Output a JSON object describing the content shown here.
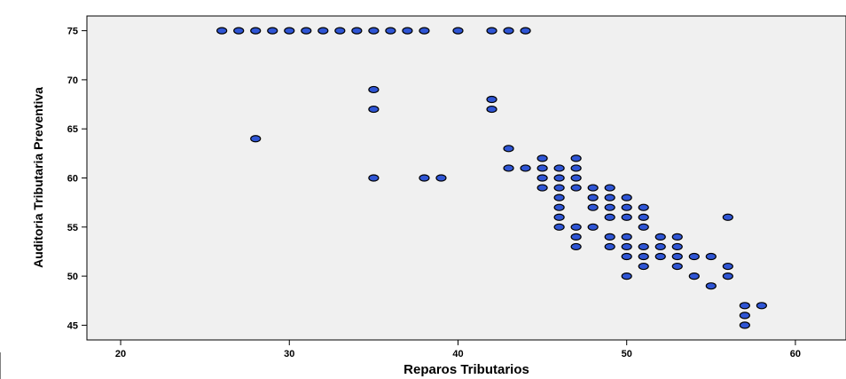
{
  "chart_data": {
    "type": "scatter",
    "xlabel": "Reparos Tributarios",
    "ylabel": "Auditoria Tributaria Preventiva",
    "xlim": [
      18,
      63
    ],
    "ylim": [
      43.5,
      76.5
    ],
    "xticks": [
      20,
      30,
      40,
      50,
      60
    ],
    "yticks": [
      45,
      50,
      55,
      60,
      65,
      70,
      75
    ],
    "grid": false,
    "colors": {
      "point_fill": "#2f55d4",
      "point_stroke": "#000000",
      "plot_background": "#f0f0f0"
    },
    "points": [
      [
        26,
        75
      ],
      [
        27,
        75
      ],
      [
        28,
        75
      ],
      [
        29,
        75
      ],
      [
        30,
        75
      ],
      [
        31,
        75
      ],
      [
        32,
        75
      ],
      [
        33,
        75
      ],
      [
        34,
        75
      ],
      [
        35,
        75
      ],
      [
        36,
        75
      ],
      [
        37,
        75
      ],
      [
        38,
        75
      ],
      [
        40,
        75
      ],
      [
        42,
        75
      ],
      [
        43,
        75
      ],
      [
        44,
        75
      ],
      [
        35,
        69
      ],
      [
        35,
        67
      ],
      [
        42,
        68
      ],
      [
        42,
        67
      ],
      [
        28,
        64
      ],
      [
        35,
        60
      ],
      [
        38,
        60
      ],
      [
        39,
        60
      ],
      [
        43,
        63
      ],
      [
        43,
        61
      ],
      [
        44,
        61
      ],
      [
        45,
        62
      ],
      [
        45,
        61
      ],
      [
        45,
        60
      ],
      [
        45,
        59
      ],
      [
        46,
        61
      ],
      [
        46,
        60
      ],
      [
        46,
        59
      ],
      [
        46,
        58
      ],
      [
        46,
        57
      ],
      [
        46,
        56
      ],
      [
        46,
        55
      ],
      [
        47,
        62
      ],
      [
        47,
        61
      ],
      [
        47,
        60
      ],
      [
        47,
        59
      ],
      [
        47,
        55
      ],
      [
        47,
        54
      ],
      [
        47,
        53
      ],
      [
        48,
        59
      ],
      [
        48,
        58
      ],
      [
        48,
        57
      ],
      [
        48,
        55
      ],
      [
        49,
        59
      ],
      [
        49,
        58
      ],
      [
        49,
        57
      ],
      [
        49,
        56
      ],
      [
        49,
        54
      ],
      [
        49,
        53
      ],
      [
        50,
        58
      ],
      [
        50,
        57
      ],
      [
        50,
        56
      ],
      [
        50,
        54
      ],
      [
        50,
        53
      ],
      [
        50,
        52
      ],
      [
        50,
        50
      ],
      [
        51,
        57
      ],
      [
        51,
        56
      ],
      [
        51,
        55
      ],
      [
        51,
        53
      ],
      [
        51,
        52
      ],
      [
        51,
        51
      ],
      [
        52,
        54
      ],
      [
        52,
        53
      ],
      [
        52,
        52
      ],
      [
        53,
        54
      ],
      [
        53,
        53
      ],
      [
        53,
        52
      ],
      [
        53,
        51
      ],
      [
        54,
        52
      ],
      [
        54,
        50
      ],
      [
        55,
        52
      ],
      [
        55,
        49
      ],
      [
        56,
        56
      ],
      [
        56,
        51
      ],
      [
        56,
        50
      ],
      [
        57,
        47
      ],
      [
        57,
        46
      ],
      [
        57,
        45
      ],
      [
        58,
        47
      ]
    ]
  }
}
